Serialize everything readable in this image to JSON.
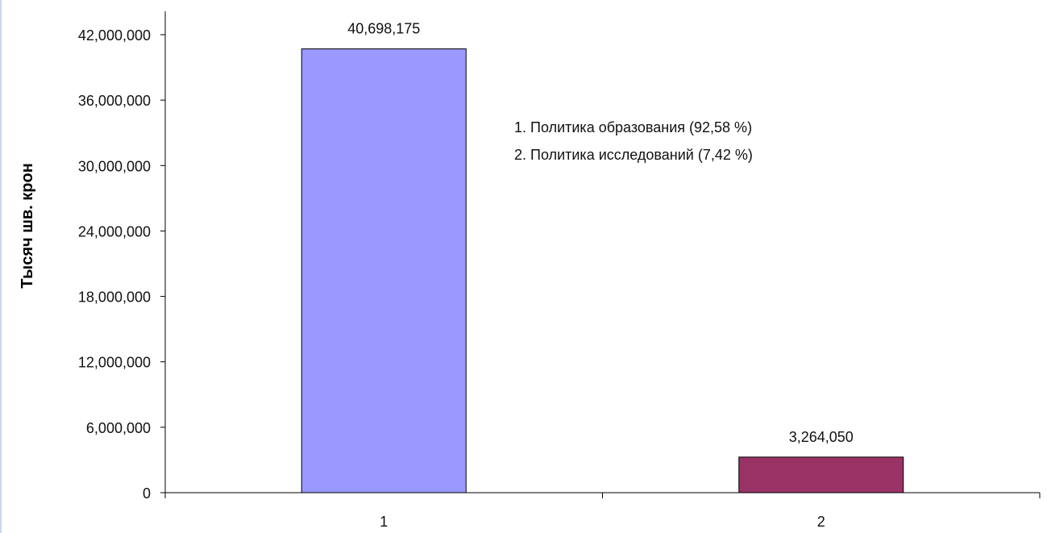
{
  "chart_data": {
    "type": "bar",
    "categories": [
      "1",
      "2"
    ],
    "values": [
      40698175,
      3264050
    ],
    "data_labels": [
      "40,698,175",
      "3,264,050"
    ],
    "colors": [
      "#9999ff",
      "#993366"
    ],
    "ylabel": "Тысяч шв. крон",
    "xlabel": "",
    "ylim": [
      0,
      42000000
    ],
    "yticks": [
      0,
      6000000,
      12000000,
      18000000,
      24000000,
      30000000,
      36000000,
      42000000
    ],
    "ytick_labels": [
      "0",
      "6,000,000",
      "12,000,000",
      "18,000,000",
      "24,000,000",
      "30,000,000",
      "36,000,000",
      "42,000,000"
    ],
    "grid": false,
    "annotations": [
      "1. Политика образования (92,58 %)",
      "2. Политика исследований (7,42 %)"
    ]
  }
}
